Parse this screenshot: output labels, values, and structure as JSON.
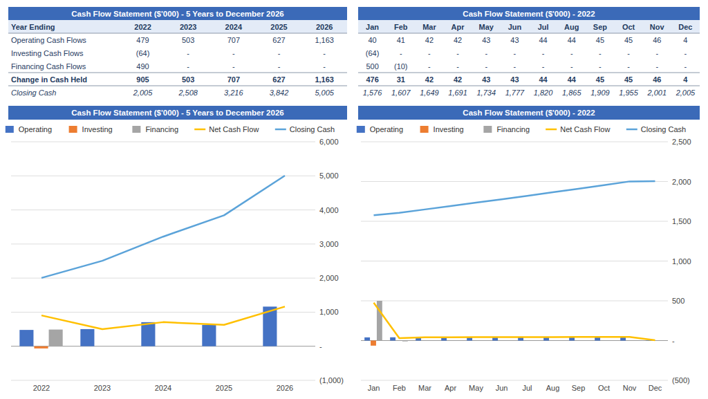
{
  "chart_data": [
    {
      "type": "table",
      "title": "Cash Flow Statement ($'000) - 5 Years to December 2026",
      "columns": [
        "Year Ending",
        "2022",
        "2023",
        "2024",
        "2025",
        "2026"
      ],
      "rows": [
        {
          "name": "Operating Cash Flows",
          "values": [
            479,
            503,
            707,
            627,
            {
              "value": 1163,
              "label": "1,163"
            }
          ]
        },
        {
          "name": "Investing Cash Flows",
          "values": [
            {
              "value": -64,
              "label": "(64)"
            },
            {
              "value": 0,
              "label": "-"
            },
            {
              "value": 0,
              "label": "-"
            },
            {
              "value": 0,
              "label": "-"
            },
            {
              "value": 0,
              "label": "-"
            }
          ]
        },
        {
          "name": "Financing Cash Flows",
          "values": [
            490,
            {
              "value": 0,
              "label": "-"
            },
            {
              "value": 0,
              "label": "-"
            },
            {
              "value": 0,
              "label": "-"
            },
            {
              "value": 0,
              "label": "-"
            }
          ]
        },
        {
          "name": "Change in Cash Held",
          "values": [
            905,
            503,
            707,
            627,
            {
              "value": 1163,
              "label": "1,163"
            }
          ]
        },
        {
          "name": "Closing Cash",
          "values": [
            {
              "value": 2005,
              "label": "2,005"
            },
            {
              "value": 2508,
              "label": "2,508"
            },
            {
              "value": 3216,
              "label": "3,216"
            },
            {
              "value": 3842,
              "label": "3,842"
            },
            {
              "value": 5005,
              "label": "5,005"
            }
          ]
        }
      ]
    },
    {
      "type": "table",
      "title": "Cash Flow Statement ($'000) - 2022",
      "columns": [
        "Jan",
        "Feb",
        "Mar",
        "Apr",
        "May",
        "Jun",
        "Jul",
        "Aug",
        "Sep",
        "Oct",
        "Nov",
        "Dec"
      ],
      "rows": [
        {
          "values": [
            40,
            41,
            42,
            42,
            43,
            43,
            44,
            44,
            45,
            45,
            46,
            4
          ]
        },
        {
          "values": [
            {
              "value": -64,
              "label": "(64)"
            },
            {
              "value": 0,
              "label": "-"
            },
            {
              "value": 0,
              "label": "-"
            },
            {
              "value": 0,
              "label": "-"
            },
            {
              "value": 0,
              "label": "-"
            },
            {
              "value": 0,
              "label": "-"
            },
            {
              "value": 0,
              "label": "-"
            },
            {
              "value": 0,
              "label": "-"
            },
            {
              "value": 0,
              "label": "-"
            },
            {
              "value": 0,
              "label": "-"
            },
            {
              "value": 0,
              "label": "-"
            },
            {
              "value": 0,
              "label": "-"
            }
          ]
        },
        {
          "values": [
            500,
            {
              "value": -10,
              "label": "(10)"
            },
            {
              "value": 0,
              "label": "-"
            },
            {
              "value": 0,
              "label": "-"
            },
            {
              "value": 0,
              "label": "-"
            },
            {
              "value": 0,
              "label": "-"
            },
            {
              "value": 0,
              "label": "-"
            },
            {
              "value": 0,
              "label": "-"
            },
            {
              "value": 0,
              "label": "-"
            },
            {
              "value": 0,
              "label": "-"
            },
            {
              "value": 0,
              "label": "-"
            },
            {
              "value": 0,
              "label": "-"
            }
          ]
        },
        {
          "values": [
            476,
            31,
            42,
            42,
            43,
            43,
            44,
            44,
            45,
            45,
            46,
            4
          ]
        },
        {
          "values": [
            {
              "value": 1576,
              "label": "1,576"
            },
            {
              "value": 1607,
              "label": "1,607"
            },
            {
              "value": 1649,
              "label": "1,649"
            },
            {
              "value": 1691,
              "label": "1,691"
            },
            {
              "value": 1734,
              "label": "1,734"
            },
            {
              "value": 1777,
              "label": "1,777"
            },
            {
              "value": 1820,
              "label": "1,820"
            },
            {
              "value": 1865,
              "label": "1,865"
            },
            {
              "value": 1909,
              "label": "1,909"
            },
            {
              "value": 1955,
              "label": "1,955"
            },
            {
              "value": 2001,
              "label": "2,001"
            },
            {
              "value": 2005,
              "label": "2,005"
            }
          ]
        }
      ]
    },
    {
      "type": "bar",
      "title": "Cash Flow Statement ($'000) - 5 Years to December 2026",
      "categories": [
        "2022",
        "2023",
        "2024",
        "2025",
        "2026"
      ],
      "series": [
        {
          "name": "Operating",
          "color": "#4472C4",
          "values": [
            479,
            503,
            707,
            627,
            1163
          ]
        },
        {
          "name": "Investing",
          "color": "#ED7D31",
          "values": [
            -64,
            0,
            0,
            0,
            0
          ]
        },
        {
          "name": "Financing",
          "color": "#A5A5A5",
          "values": [
            490,
            0,
            0,
            0,
            0
          ]
        },
        {
          "name": "Net Cash Flow",
          "type": "line",
          "color": "#FFC000",
          "values": [
            905,
            503,
            707,
            627,
            1163
          ]
        },
        {
          "name": "Closing Cash",
          "type": "line",
          "color": "#5BA3D9",
          "values": [
            2005,
            2508,
            3216,
            3842,
            5005
          ]
        }
      ],
      "ylim": [
        -1000,
        6000
      ],
      "yticks": [
        {
          "value": -1000,
          "label": "(1,000)"
        },
        {
          "value": 0,
          "label": "-"
        },
        {
          "value": 1000,
          "label": "1,000"
        },
        {
          "value": 2000,
          "label": "2,000"
        },
        {
          "value": 3000,
          "label": "3,000"
        },
        {
          "value": 4000,
          "label": "4,000"
        },
        {
          "value": 5000,
          "label": "5,000"
        },
        {
          "value": 6000,
          "label": "6,000"
        }
      ],
      "grid": true,
      "legend": "top"
    },
    {
      "type": "bar",
      "title": "Cash Flow Statement ($'000) - 2022",
      "categories": [
        "Jan",
        "Feb",
        "Mar",
        "Apr",
        "May",
        "Jun",
        "Jul",
        "Aug",
        "Sep",
        "Oct",
        "Nov",
        "Dec"
      ],
      "series": [
        {
          "name": "Operating",
          "color": "#4472C4",
          "values": [
            40,
            41,
            42,
            42,
            43,
            43,
            44,
            44,
            45,
            45,
            46,
            4
          ]
        },
        {
          "name": "Investing",
          "color": "#ED7D31",
          "values": [
            -64,
            0,
            0,
            0,
            0,
            0,
            0,
            0,
            0,
            0,
            0,
            0
          ]
        },
        {
          "name": "Financing",
          "color": "#A5A5A5",
          "values": [
            500,
            -10,
            0,
            0,
            0,
            0,
            0,
            0,
            0,
            0,
            0,
            0
          ]
        },
        {
          "name": "Net Cash Flow",
          "type": "line",
          "color": "#FFC000",
          "values": [
            476,
            31,
            42,
            42,
            43,
            43,
            44,
            44,
            45,
            45,
            46,
            4
          ]
        },
        {
          "name": "Closing Cash",
          "type": "line",
          "color": "#5BA3D9",
          "values": [
            1576,
            1607,
            1649,
            1691,
            1734,
            1777,
            1820,
            1865,
            1909,
            1955,
            2001,
            2005
          ]
        }
      ],
      "ylim": [
        -500,
        2500
      ],
      "yticks": [
        {
          "value": -500,
          "label": "(500)"
        },
        {
          "value": 0,
          "label": "-"
        },
        {
          "value": 500,
          "label": "500"
        },
        {
          "value": 1000,
          "label": "1,000"
        },
        {
          "value": 1500,
          "label": "1,500"
        },
        {
          "value": 2000,
          "label": "2,000"
        },
        {
          "value": 2500,
          "label": "2,500"
        }
      ],
      "grid": true,
      "legend": "top"
    }
  ]
}
